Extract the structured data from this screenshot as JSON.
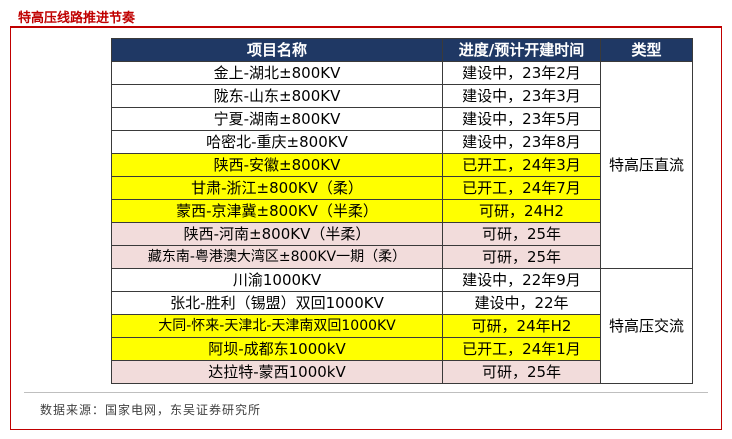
{
  "page": {
    "title": "特高压线路推进节奏"
  },
  "table": {
    "headers": {
      "name": "项目名称",
      "status": "进度/预计开建时间",
      "type": "类型"
    },
    "rows": [
      {
        "name": "金上-湖北±800KV",
        "status": "建设中，23年2月",
        "fill": "built"
      },
      {
        "name": "陇东-山东±800KV",
        "status": "建设中，23年3月",
        "fill": "built"
      },
      {
        "name": "宁夏-湖南±800KV",
        "status": "建设中，23年5月",
        "fill": "built"
      },
      {
        "name": "哈密北-重庆±800KV",
        "status": "建设中，23年8月",
        "fill": "built"
      },
      {
        "name": "陕西-安徽±800KV",
        "status": "已开工，24年3月",
        "fill": "started"
      },
      {
        "name": "甘肃-浙江±800KV（柔）",
        "status": "已开工，24年7月",
        "fill": "started"
      },
      {
        "name": "蒙西-京津冀±800KV（半柔）",
        "status": "可研，24H2",
        "fill": "started"
      },
      {
        "name": "陕西-河南±800KV（半柔）",
        "status": "可研，25年",
        "fill": "study"
      },
      {
        "name": "藏东南-粤港澳大湾区±800KV一期（柔）",
        "status": "可研，25年",
        "fill": "study"
      },
      {
        "name": "川渝1000KV",
        "status": "建设中，22年9月",
        "fill": "built"
      },
      {
        "name": "张北-胜利（锡盟）双回1000KV",
        "status": "建设中，22年",
        "fill": "built"
      },
      {
        "name": "大同-怀来-天津北-天津南双回1000KV",
        "status": "可研，24年H2",
        "fill": "started"
      },
      {
        "name": "阿坝-成都东1000kV",
        "status": "已开工，24年1月",
        "fill": "started"
      },
      {
        "name": "达拉特-蒙西1000kV",
        "status": "可研，25年",
        "fill": "study"
      }
    ],
    "groups": [
      {
        "label": "特高压直流",
        "rows": 9
      },
      {
        "label": "特高压交流",
        "rows": 5
      }
    ],
    "colors": {
      "header_bg": "#1f3864",
      "started": "#ffff00",
      "study": "#f2dcdb",
      "built": "#ffffff",
      "title_red": "#c00000"
    }
  },
  "source": {
    "text": "数据来源：国家电网，东吴证券研究所"
  }
}
